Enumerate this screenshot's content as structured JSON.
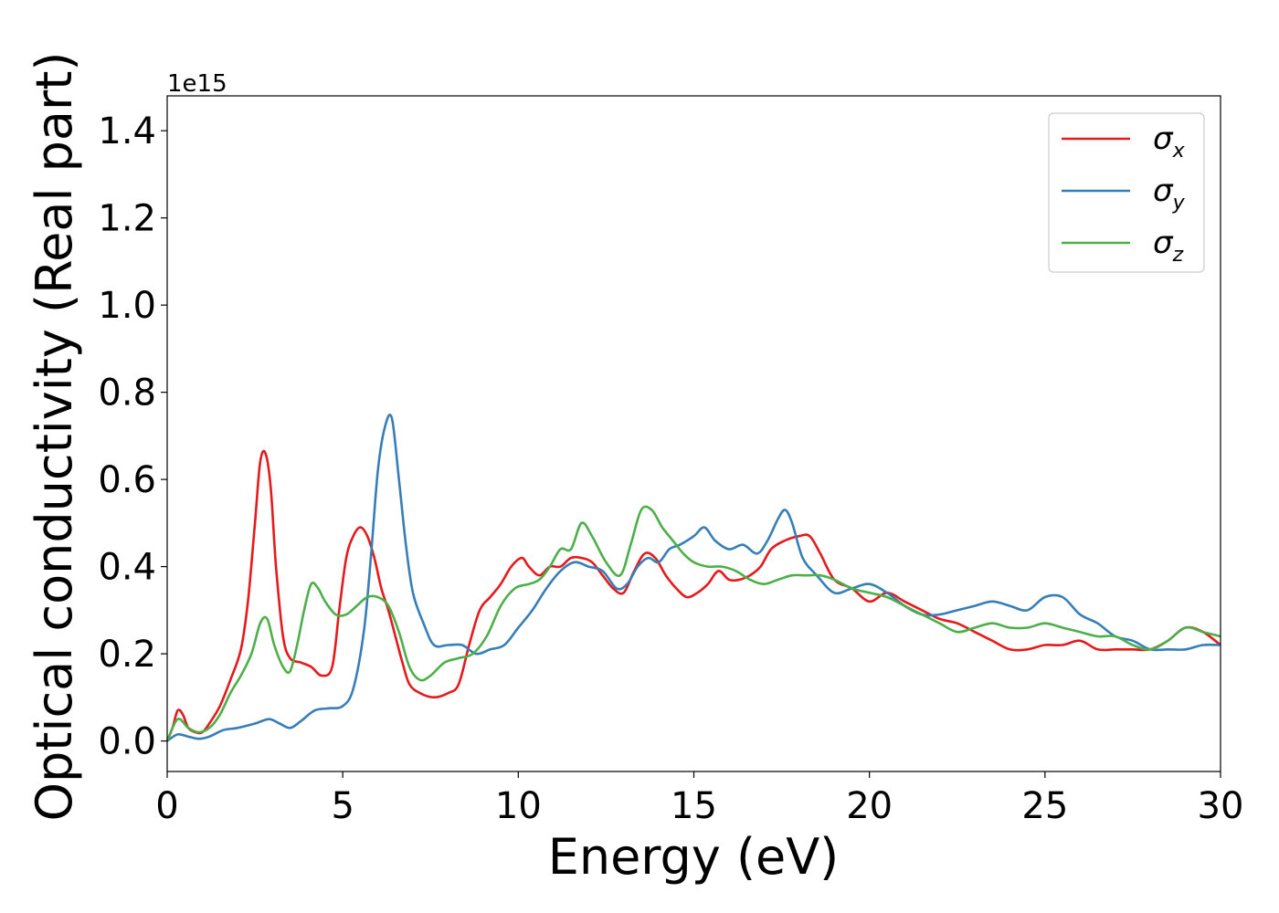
{
  "chart_data": {
    "type": "line",
    "xlabel": "Energy (eV)",
    "ylabel": "Optical conductivity (Real part)",
    "offset_text": "1e15",
    "xlim": [
      0,
      30
    ],
    "ylim": [
      -0.07,
      1.48
    ],
    "x_ticks": [
      "0",
      "5",
      "10",
      "15",
      "20",
      "25",
      "30"
    ],
    "y_ticks": [
      "0.0",
      "0.2",
      "0.4",
      "0.6",
      "0.8",
      "1.0",
      "1.2",
      "1.4"
    ],
    "grid": false,
    "legend_position": "upper right",
    "series": [
      {
        "name": "σ",
        "subscript": "x",
        "color": "#e41a1c",
        "x": [
          0,
          0.15,
          0.3,
          0.45,
          0.6,
          0.8,
          1.0,
          1.2,
          1.5,
          1.8,
          2.1,
          2.3,
          2.5,
          2.65,
          2.8,
          2.95,
          3.1,
          3.3,
          3.5,
          3.8,
          4.1,
          4.4,
          4.7,
          4.9,
          5.1,
          5.3,
          5.5,
          5.7,
          5.9,
          6.1,
          6.3,
          6.5,
          6.7,
          6.9,
          7.2,
          7.6,
          8.0,
          8.3,
          8.6,
          8.9,
          9.2,
          9.5,
          9.8,
          10.1,
          10.3,
          10.6,
          10.9,
          11.2,
          11.5,
          11.8,
          12.1,
          12.4,
          12.7,
          13.0,
          13.3,
          13.6,
          13.9,
          14.2,
          14.5,
          14.8,
          15.1,
          15.4,
          15.7,
          16.0,
          16.3,
          16.6,
          16.9,
          17.2,
          17.6,
          18.0,
          18.3,
          18.6,
          19.0,
          19.5,
          20.0,
          20.5,
          21.0,
          21.5,
          22.0,
          22.5,
          23.0,
          23.5,
          24.0,
          24.5,
          25.0,
          25.5,
          26.0,
          26.5,
          27.0,
          27.5,
          28.0,
          28.5,
          29.0,
          29.5,
          30.0
        ],
        "values": [
          0.0,
          0.03,
          0.07,
          0.06,
          0.03,
          0.02,
          0.02,
          0.04,
          0.08,
          0.14,
          0.21,
          0.32,
          0.5,
          0.64,
          0.66,
          0.58,
          0.4,
          0.24,
          0.19,
          0.18,
          0.17,
          0.15,
          0.17,
          0.3,
          0.42,
          0.47,
          0.49,
          0.47,
          0.42,
          0.35,
          0.3,
          0.24,
          0.18,
          0.13,
          0.11,
          0.1,
          0.11,
          0.13,
          0.22,
          0.3,
          0.33,
          0.36,
          0.4,
          0.42,
          0.4,
          0.38,
          0.4,
          0.4,
          0.42,
          0.42,
          0.41,
          0.38,
          0.35,
          0.34,
          0.39,
          0.43,
          0.42,
          0.38,
          0.35,
          0.33,
          0.34,
          0.36,
          0.39,
          0.37,
          0.37,
          0.38,
          0.4,
          0.44,
          0.46,
          0.47,
          0.47,
          0.43,
          0.37,
          0.35,
          0.32,
          0.34,
          0.32,
          0.3,
          0.28,
          0.27,
          0.25,
          0.23,
          0.21,
          0.21,
          0.22,
          0.22,
          0.23,
          0.21,
          0.21,
          0.21,
          0.21,
          0.23,
          0.26,
          0.25,
          0.22
        ]
      },
      {
        "name": "σ",
        "subscript": "y",
        "color": "#377eb8",
        "x": [
          0,
          0.3,
          0.6,
          0.9,
          1.2,
          1.6,
          2.0,
          2.5,
          2.9,
          3.2,
          3.5,
          3.8,
          4.2,
          4.6,
          5.0,
          5.3,
          5.6,
          5.8,
          6.0,
          6.2,
          6.4,
          6.6,
          6.8,
          7.0,
          7.3,
          7.6,
          8.0,
          8.4,
          8.8,
          9.2,
          9.6,
          10.0,
          10.4,
          10.8,
          11.2,
          11.6,
          12.0,
          12.4,
          12.8,
          13.1,
          13.4,
          13.7,
          14.0,
          14.3,
          14.6,
          15.0,
          15.3,
          15.6,
          16.0,
          16.4,
          16.8,
          17.1,
          17.4,
          17.6,
          17.8,
          18.1,
          18.5,
          19.0,
          19.5,
          20.0,
          20.5,
          21.0,
          21.5,
          22.0,
          22.5,
          23.0,
          23.5,
          24.0,
          24.5,
          25.0,
          25.5,
          26.0,
          26.5,
          27.0,
          27.5,
          28.0,
          28.5,
          29.0,
          29.5,
          30.0
        ],
        "values": [
          0.0,
          0.015,
          0.01,
          0.005,
          0.01,
          0.025,
          0.03,
          0.04,
          0.05,
          0.04,
          0.03,
          0.045,
          0.07,
          0.075,
          0.08,
          0.12,
          0.25,
          0.42,
          0.62,
          0.72,
          0.74,
          0.6,
          0.45,
          0.34,
          0.27,
          0.22,
          0.22,
          0.22,
          0.2,
          0.21,
          0.22,
          0.26,
          0.3,
          0.35,
          0.39,
          0.41,
          0.4,
          0.39,
          0.35,
          0.36,
          0.4,
          0.42,
          0.41,
          0.44,
          0.45,
          0.47,
          0.49,
          0.46,
          0.44,
          0.45,
          0.43,
          0.46,
          0.51,
          0.53,
          0.5,
          0.42,
          0.38,
          0.34,
          0.35,
          0.36,
          0.34,
          0.31,
          0.29,
          0.29,
          0.3,
          0.31,
          0.32,
          0.31,
          0.3,
          0.33,
          0.33,
          0.29,
          0.27,
          0.24,
          0.23,
          0.21,
          0.21,
          0.21,
          0.22,
          0.22
        ]
      },
      {
        "name": "σ",
        "subscript": "z",
        "color": "#4daf4a",
        "x": [
          0,
          0.3,
          0.6,
          0.9,
          1.2,
          1.5,
          1.8,
          2.1,
          2.4,
          2.65,
          2.85,
          3.05,
          3.3,
          3.5,
          3.7,
          3.9,
          4.1,
          4.3,
          4.5,
          4.8,
          5.1,
          5.4,
          5.7,
          6.0,
          6.3,
          6.6,
          6.9,
          7.2,
          7.5,
          7.9,
          8.3,
          8.7,
          9.1,
          9.5,
          9.9,
          10.3,
          10.6,
          10.9,
          11.2,
          11.5,
          11.8,
          12.1,
          12.5,
          12.9,
          13.2,
          13.5,
          13.8,
          14.1,
          14.4,
          14.7,
          15.0,
          15.4,
          15.8,
          16.2,
          16.6,
          17.0,
          17.4,
          17.8,
          18.2,
          18.6,
          19.0,
          19.5,
          20.0,
          20.5,
          21.0,
          21.5,
          22.0,
          22.5,
          23.0,
          23.5,
          24.0,
          24.5,
          25.0,
          25.5,
          26.0,
          26.5,
          27.0,
          27.5,
          28.0,
          28.5,
          29.0,
          29.5,
          30.0
        ],
        "values": [
          0.0,
          0.05,
          0.03,
          0.02,
          0.03,
          0.06,
          0.11,
          0.15,
          0.2,
          0.27,
          0.28,
          0.22,
          0.17,
          0.16,
          0.22,
          0.3,
          0.36,
          0.35,
          0.32,
          0.29,
          0.29,
          0.31,
          0.33,
          0.33,
          0.31,
          0.25,
          0.17,
          0.14,
          0.15,
          0.18,
          0.19,
          0.2,
          0.24,
          0.31,
          0.35,
          0.36,
          0.37,
          0.4,
          0.44,
          0.44,
          0.5,
          0.47,
          0.41,
          0.38,
          0.45,
          0.53,
          0.53,
          0.49,
          0.46,
          0.43,
          0.41,
          0.4,
          0.4,
          0.39,
          0.37,
          0.36,
          0.37,
          0.38,
          0.38,
          0.38,
          0.37,
          0.35,
          0.34,
          0.33,
          0.31,
          0.29,
          0.27,
          0.25,
          0.26,
          0.27,
          0.26,
          0.26,
          0.27,
          0.26,
          0.25,
          0.24,
          0.24,
          0.22,
          0.21,
          0.23,
          0.26,
          0.25,
          0.24
        ]
      }
    ]
  }
}
